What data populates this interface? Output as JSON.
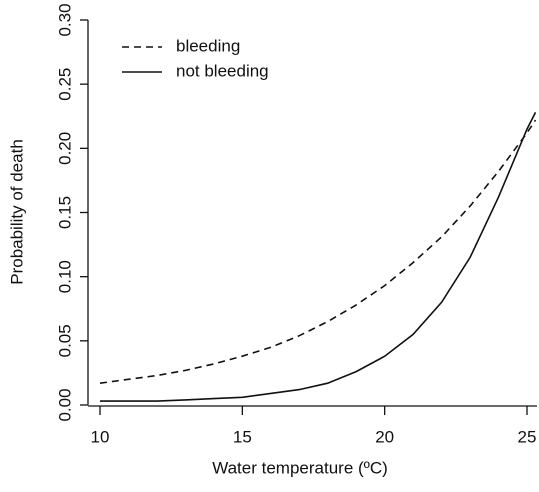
{
  "chart_data": {
    "type": "line",
    "x_label": "Water temperature (ºC)",
    "y_label": "Probability of death",
    "x": [
      10,
      11,
      12,
      13,
      14,
      15,
      16,
      17,
      18,
      19,
      20,
      21,
      22,
      23,
      24,
      25,
      25.3
    ],
    "series": [
      {
        "name": "bleeding",
        "color": "#111111",
        "dash": true,
        "values": [
          0.017,
          0.02,
          0.023,
          0.027,
          0.032,
          0.038,
          0.045,
          0.054,
          0.065,
          0.078,
          0.093,
          0.111,
          0.131,
          0.155,
          0.182,
          0.212,
          0.222
        ]
      },
      {
        "name": "not bleeding",
        "color": "#111111",
        "dash": false,
        "values": [
          0.003,
          0.003,
          0.003,
          0.004,
          0.005,
          0.006,
          0.009,
          0.012,
          0.017,
          0.026,
          0.038,
          0.055,
          0.08,
          0.115,
          0.162,
          0.215,
          0.228
        ]
      }
    ],
    "xlim": [
      9.6,
      25.35
    ],
    "ylim": [
      0,
      0.3
    ],
    "xticks": [
      10,
      15,
      20,
      25
    ],
    "yticks": [
      {
        "value": 0,
        "label": "0.00"
      },
      {
        "value": 0.05,
        "label": "0.05"
      },
      {
        "value": 0.1,
        "label": "0.10"
      },
      {
        "value": 0.15,
        "label": "0.15"
      },
      {
        "value": 0.2,
        "label": "0.20"
      },
      {
        "value": 0.25,
        "label": "0.25"
      },
      {
        "value": 0.3,
        "label": "0.30"
      }
    ],
    "legend": "top-left"
  }
}
